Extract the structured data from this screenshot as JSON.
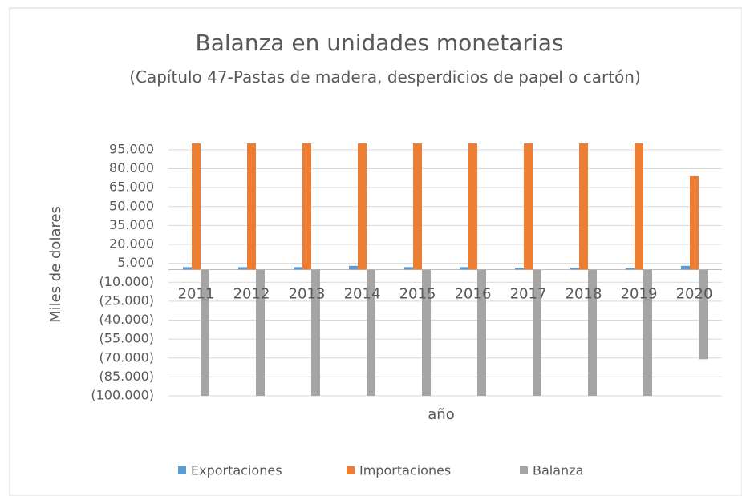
{
  "chart_data": {
    "type": "bar",
    "title": "Balanza en unidades monetarias",
    "subtitle": "(Capítulo 47-Pastas de madera, desperdicios de papel o cartón)",
    "x_label": "año",
    "y_label": "Miles de dolares",
    "categories": [
      "2011",
      "2012",
      "2013",
      "2014",
      "2015",
      "2016",
      "2017",
      "2018",
      "2019",
      "2020"
    ],
    "series": [
      {
        "name": "Exportaciones",
        "color": "#5b9bd5",
        "values": [
          2000,
          2000,
          2000,
          3000,
          2000,
          2000,
          1500,
          1500,
          1000,
          3000
        ]
      },
      {
        "name": "Importaciones",
        "color": "#ed7d31",
        "values": [
          100000,
          100000,
          100000,
          100000,
          100000,
          100000,
          100000,
          100000,
          100000,
          74000
        ]
      },
      {
        "name": "Balanza",
        "color": "#a5a5a5",
        "values": [
          -100000,
          -100000,
          -100000,
          -100000,
          -100000,
          -100000,
          -100000,
          -100000,
          -100000,
          -71000
        ]
      }
    ],
    "ylim": [
      -100000,
      100000
    ],
    "yticks": [
      {
        "value": 95000,
        "label": "95.000"
      },
      {
        "value": 80000,
        "label": "80.000"
      },
      {
        "value": 65000,
        "label": "65.000"
      },
      {
        "value": 50000,
        "label": "50.000"
      },
      {
        "value": 35000,
        "label": "35.000"
      },
      {
        "value": 20000,
        "label": "20.000"
      },
      {
        "value": 5000,
        "label": "5.000"
      },
      {
        "value": -10000,
        "label": "(10.000)"
      },
      {
        "value": -25000,
        "label": "(25.000)"
      },
      {
        "value": -40000,
        "label": "(40.000)"
      },
      {
        "value": -55000,
        "label": "(55.000)"
      },
      {
        "value": -70000,
        "label": "(70.000)"
      },
      {
        "value": -85000,
        "label": "(85.000)"
      },
      {
        "value": -100000,
        "label": "(100.000)"
      }
    ],
    "grid": true,
    "legend": "bottom"
  }
}
